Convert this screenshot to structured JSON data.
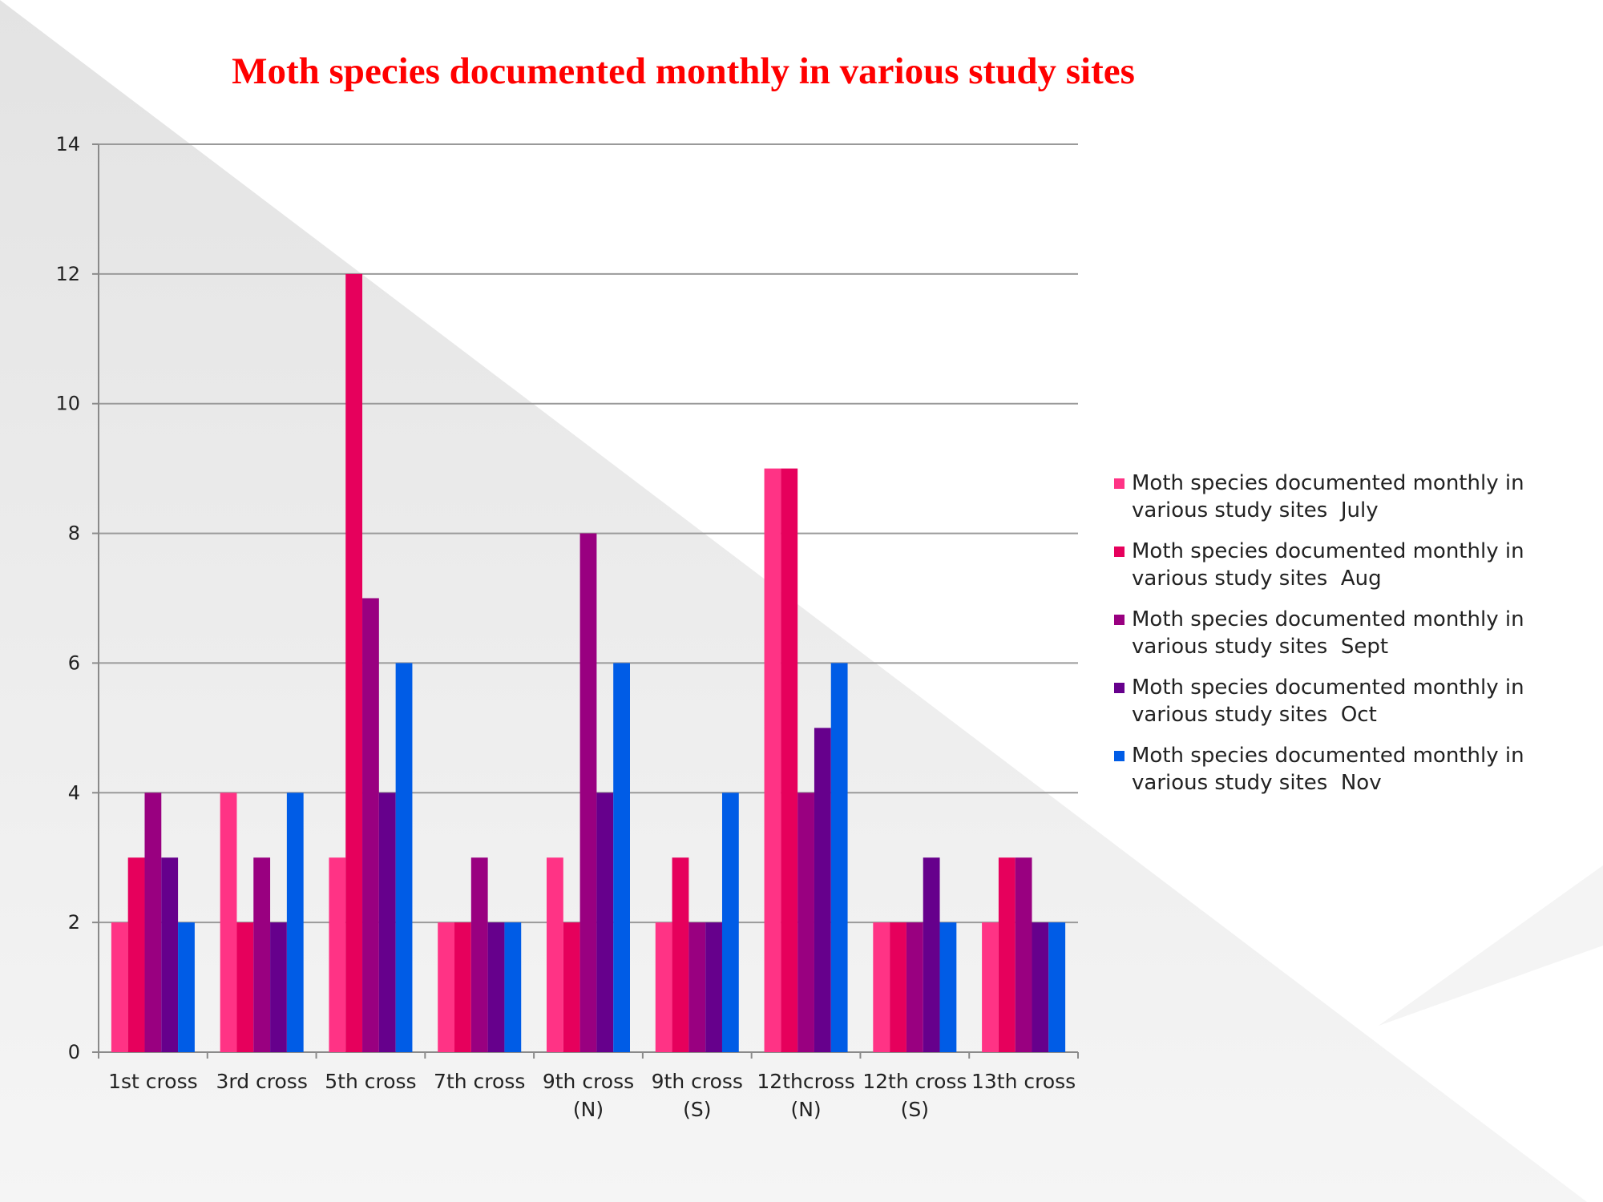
{
  "chart_data": {
    "type": "bar",
    "title": "Moth species documented monthly in various study sites",
    "xlabel": "",
    "ylabel": "",
    "ylim": [
      0,
      14
    ],
    "yticks": [
      0,
      2,
      4,
      6,
      8,
      10,
      12,
      14
    ],
    "grid": true,
    "legend_position": "right",
    "categories": [
      [
        "1st cross"
      ],
      [
        "3rd cross"
      ],
      [
        "5th cross"
      ],
      [
        "7th cross"
      ],
      [
        "9th cross",
        "(N)"
      ],
      [
        "9th cross",
        "(S)"
      ],
      [
        "12thcross",
        "(N)"
      ],
      [
        "12th cross",
        "(S)"
      ],
      [
        "13th cross"
      ]
    ],
    "series": [
      {
        "name": "Moth species documented monthly in various study sites  July",
        "label_lines": [
          "Moth species documented monthly in",
          "various study sites  July"
        ],
        "color": "#ff3385",
        "values": [
          2,
          4,
          3,
          2,
          3,
          2,
          9,
          2,
          2
        ]
      },
      {
        "name": "Moth species documented monthly in various study sites  Aug",
        "label_lines": [
          "Moth species documented monthly in",
          "various study sites  Aug"
        ],
        "color": "#e6005c",
        "values": [
          3,
          2,
          12,
          2,
          2,
          3,
          9,
          2,
          3
        ]
      },
      {
        "name": "Moth species documented monthly in various study sites  Sept",
        "label_lines": [
          "Moth species documented monthly in",
          "various study sites  Sept"
        ],
        "color": "#990080",
        "values": [
          4,
          3,
          7,
          3,
          8,
          2,
          4,
          2,
          3
        ]
      },
      {
        "name": "Moth species documented monthly in various study sites  Oct",
        "label_lines": [
          "Moth species documented monthly in",
          "various study sites  Oct"
        ],
        "color": "#66008c",
        "values": [
          3,
          2,
          4,
          2,
          4,
          2,
          5,
          3,
          2
        ]
      },
      {
        "name": "Moth species documented monthly in various study sites  Nov",
        "label_lines": [
          "Moth species documented monthly in",
          "various study sites  Nov"
        ],
        "color": "#005ce6",
        "values": [
          2,
          4,
          6,
          2,
          6,
          4,
          6,
          2,
          2
        ]
      }
    ]
  }
}
